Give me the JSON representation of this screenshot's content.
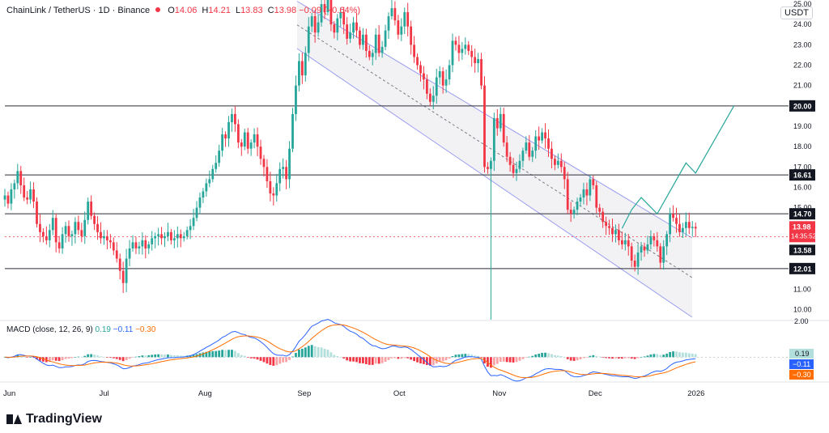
{
  "header": {
    "symbol": "ChainLink / TetherUS · 1D · Binance",
    "open": "14.06",
    "high": "14.21",
    "low": "13.83",
    "close": "13.98",
    "change": "−0.09 (−0.64%)"
  },
  "currency": "USDT",
  "macd_header": {
    "label": "MACD (close, 12, 26, 9)",
    "hist": "0.19",
    "macd": "−0.11",
    "signal": "−0.30"
  },
  "brand": "TradingView",
  "colors": {
    "up": "#26a69a",
    "down": "#f23645",
    "channel": "#9c9ff0",
    "projection": "#26a69a",
    "macd": "#2962ff",
    "signal": "#ff6d00"
  },
  "chart_data": {
    "type": "candlestick",
    "y_axis": {
      "min": 9.5,
      "max": 25.2,
      "ticks": [
        "10.00",
        "11.00",
        "12.00",
        "13.00",
        "14.00",
        "15.00",
        "16.00",
        "17.00",
        "18.00",
        "19.00",
        "20.00",
        "21.00",
        "22.00",
        "23.00",
        "24.00",
        "25.00"
      ]
    },
    "x_axis": {
      "labels": [
        "Jun",
        "Jul",
        "Aug",
        "Sep",
        "Oct",
        "Nov",
        "Dec",
        "2026"
      ]
    },
    "horizontal_levels": [
      "20.00",
      "16.61",
      "14.70",
      "12.01"
    ],
    "price_labels": {
      "last": "13.98",
      "countdown": "14:35:52",
      "prev": "13.58"
    },
    "closes": [
      15.6,
      15.2,
      15.9,
      16.2,
      16.8,
      16.1,
      15.5,
      15.4,
      15.9,
      15.3,
      14.2,
      13.8,
      13.6,
      13.4,
      13.9,
      14.5,
      13.3,
      13.0,
      13.7,
      14.1,
      13.6,
      13.7,
      14.3,
      13.9,
      13.6,
      14.4,
      15.3,
      14.6,
      14.2,
      13.8,
      13.5,
      13.6,
      13.4,
      13.3,
      12.9,
      12.5,
      11.9,
      11.3,
      12.5,
      13.0,
      13.3,
      13.0,
      13.1,
      13.4,
      13.0,
      13.2,
      13.5,
      13.6,
      13.7,
      13.5,
      13.6,
      13.8,
      13.4,
      13.5,
      13.7,
      13.5,
      13.6,
      13.9,
      14.1,
      14.5,
      15.0,
      15.5,
      15.8,
      16.2,
      16.4,
      16.9,
      17.2,
      17.8,
      18.6,
      18.4,
      19.2,
      19.6,
      19.1,
      18.2,
      18.0,
      18.7,
      17.9,
      18.2,
      18.6,
      18.0,
      17.4,
      17.0,
      16.3,
      15.7,
      15.6,
      16.2,
      16.9,
      17.0,
      16.4,
      17.9,
      19.6,
      21.0,
      22.2,
      21.5,
      22.6,
      23.9,
      24.4,
      23.6,
      24.1,
      25.0,
      24.6,
      25.2,
      24.0,
      23.6,
      24.3,
      24.6,
      24.0,
      23.3,
      23.6,
      24.1,
      23.7,
      23.0,
      23.5,
      22.7,
      22.4,
      22.6,
      23.5,
      22.6,
      22.9,
      23.7,
      24.4,
      24.8,
      24.2,
      23.5,
      23.9,
      24.6,
      23.9,
      23.0,
      22.4,
      22.0,
      21.6,
      21.3,
      20.6,
      20.2,
      20.5,
      21.4,
      21.7,
      21.0,
      21.3,
      22.0,
      23.2,
      23.0,
      22.6,
      22.8,
      23.0,
      22.7,
      22.4,
      22.1,
      22.3,
      21.0,
      17.0,
      16.9,
      17.3,
      19.4,
      18.9,
      19.6,
      18.2,
      17.5,
      17.1,
      16.7,
      16.9,
      17.3,
      17.8,
      18.2,
      17.5,
      17.8,
      18.5,
      18.3,
      18.7,
      18.4,
      17.9,
      17.4,
      17.1,
      17.3,
      17.0,
      16.4,
      14.9,
      14.7,
      14.9,
      15.3,
      15.5,
      15.9,
      15.6,
      16.4,
      16.1,
      15.0,
      14.8,
      14.3,
      14.1,
      14.0,
      13.7,
      13.9,
      13.4,
      13.2,
      13.4,
      13.1,
      12.4,
      12.1,
      12.8,
      13.1,
      12.9,
      13.2,
      13.6,
      13.4,
      13.1,
      12.3,
      13.1,
      13.7,
      14.7,
      14.5,
      14.2,
      13.8,
      14.0,
      14.3,
      14.0,
      14.06,
      13.98
    ],
    "macd_range": [
      -1.3,
      2.05
    ],
    "macd_ticks": [
      "2.00"
    ],
    "projection": [
      [
        "Dec 10",
        13.98
      ],
      [
        "Dec 13",
        14.9
      ],
      [
        "Dec 16",
        15.5
      ],
      [
        "Dec 21",
        14.7
      ],
      [
        "Dec 30",
        17.2
      ],
      [
        "Jan 2",
        16.7
      ],
      [
        "Jan 14",
        20.0
      ]
    ]
  }
}
